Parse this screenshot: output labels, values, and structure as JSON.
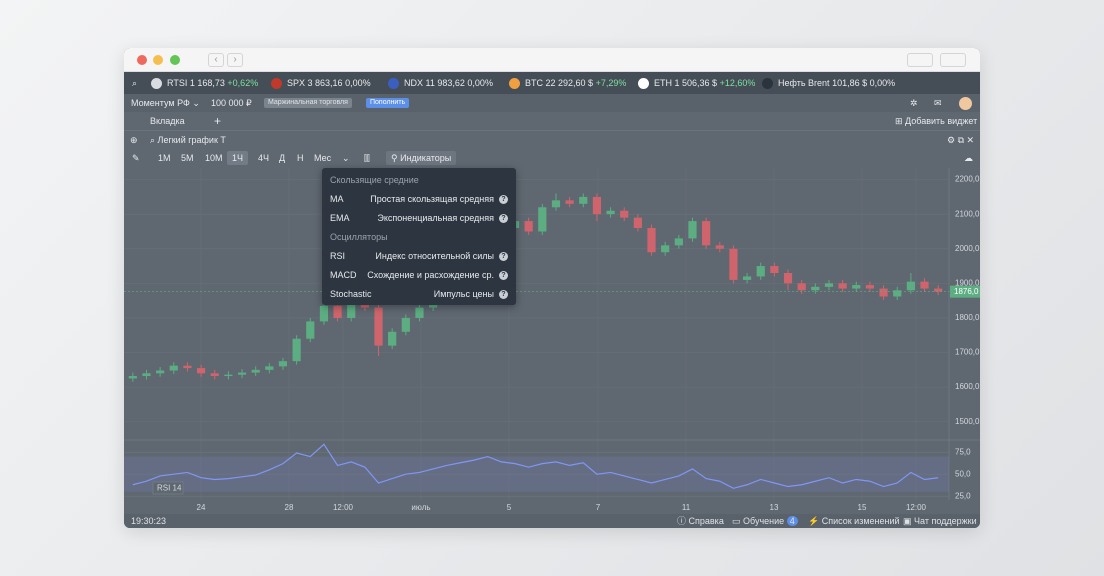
{
  "tickers": [
    {
      "name": "RTSI",
      "price": "1 168,73",
      "change": "+0,62%"
    },
    {
      "name": "SPX",
      "price": "3 863,16",
      "change": "0,00%"
    },
    {
      "name": "NDX",
      "price": "11 983,62",
      "change": "0,00%"
    },
    {
      "name": "BTC",
      "price": "22 292,60 $",
      "change": "+7,29%"
    },
    {
      "name": "ETH",
      "price": "1 506,36 $",
      "change": "+12,60%"
    },
    {
      "name": "Нефть Brent",
      "price": "101,86 $",
      "change": "0,00%"
    }
  ],
  "account": {
    "name": "Моментум РФ",
    "balance": "100 000 ₽",
    "badge": "Маржинальная торговля",
    "button": "Пополнить"
  },
  "tabs": {
    "tab": "Вкладка",
    "add_widget": "Добавить виджет"
  },
  "widget": {
    "title": "Легкий график Т"
  },
  "toolbar": {
    "intervals": [
      "1М",
      "5М",
      "10М",
      "1Ч",
      "4Ч",
      "Д",
      "Н",
      "Мес"
    ],
    "selected": 3,
    "indicators": "Индикаторы"
  },
  "dropdown": {
    "sections": [
      {
        "title": "Скользящие средние",
        "items": [
          {
            "code": "MA",
            "name": "Простая скользящая средняя"
          },
          {
            "code": "EMA",
            "name": "Экспоненциальная средняя"
          }
        ]
      },
      {
        "title": "Осцилляторы",
        "items": [
          {
            "code": "RSI",
            "name": "Индекс относительной силы"
          },
          {
            "code": "MACD",
            "name": "Схождение и расхождение ср."
          },
          {
            "code": "Stochastic",
            "name": "Импульс цены"
          }
        ]
      }
    ]
  },
  "status_bar": {
    "time": "19:30:23",
    "help": "Справка",
    "learning": "Обучение",
    "learning_count": "4",
    "changelog": "Список изменений",
    "support": "Чат поддержки"
  },
  "chart_data": [
    {
      "type": "candlestick",
      "up_color": "#5cae82",
      "down_color": "#d0646c",
      "grid": true,
      "open": [
        1625,
        1632,
        1640,
        1648,
        1662,
        1655,
        1640,
        1632,
        1636,
        1642,
        1650,
        1660,
        1675,
        1740,
        1790,
        1835,
        1800,
        1845,
        1830,
        1720,
        1760,
        1800,
        1830,
        1880,
        1930,
        1980,
        2010,
        2040,
        2060,
        2080,
        2050,
        2120,
        2140,
        2130,
        2150,
        2100,
        2110,
        2090,
        2060,
        1990,
        2010,
        2030,
        2080,
        2010,
        2000,
        1910,
        1920,
        1950,
        1930,
        1900,
        1880,
        1890,
        1900,
        1885,
        1895,
        1885,
        1862,
        1880,
        1905,
        1885
      ],
      "close": [
        1632,
        1640,
        1648,
        1662,
        1655,
        1640,
        1632,
        1636,
        1642,
        1650,
        1660,
        1675,
        1740,
        1790,
        1835,
        1800,
        1845,
        1830,
        1720,
        1760,
        1800,
        1830,
        1880,
        1930,
        1980,
        2010,
        2040,
        2060,
        2080,
        2050,
        2120,
        2140,
        2130,
        2150,
        2100,
        2110,
        2090,
        2060,
        1990,
        2010,
        2030,
        2080,
        2010,
        2000,
        1910,
        1920,
        1950,
        1930,
        1900,
        1880,
        1890,
        1900,
        1885,
        1895,
        1885,
        1862,
        1880,
        1905,
        1885,
        1876
      ],
      "high": [
        1642,
        1650,
        1658,
        1672,
        1672,
        1665,
        1650,
        1646,
        1652,
        1660,
        1670,
        1685,
        1750,
        1800,
        1845,
        1845,
        1855,
        1855,
        1840,
        1770,
        1810,
        1840,
        1890,
        1940,
        1990,
        2020,
        2050,
        2070,
        2090,
        2090,
        2130,
        2160,
        2150,
        2160,
        2160,
        2120,
        2120,
        2100,
        2070,
        2020,
        2040,
        2090,
        2090,
        2020,
        2010,
        1930,
        1960,
        1960,
        1940,
        1910,
        1900,
        1910,
        1910,
        1905,
        1905,
        1895,
        1890,
        1930,
        1915,
        1895
      ],
      "low": [
        1615,
        1622,
        1630,
        1638,
        1645,
        1630,
        1622,
        1622,
        1626,
        1632,
        1640,
        1650,
        1665,
        1730,
        1780,
        1790,
        1790,
        1820,
        1690,
        1710,
        1750,
        1790,
        1820,
        1870,
        1920,
        1970,
        2000,
        2030,
        2050,
        2040,
        2040,
        2110,
        2120,
        2120,
        2080,
        2090,
        2080,
        2050,
        1980,
        1980,
        2000,
        2020,
        2000,
        1990,
        1900,
        1900,
        1910,
        1920,
        1880,
        1870,
        1870,
        1880,
        1875,
        1875,
        1875,
        1852,
        1852,
        1870,
        1875,
        1866
      ],
      "ylim": [
        1450,
        2222
      ],
      "yticks": [
        {
          "value": 2200,
          "label": "2200,0"
        },
        {
          "value": 2100,
          "label": "2100,0"
        },
        {
          "value": 2000,
          "label": "2000,0"
        },
        {
          "value": 1900,
          "label": "1900,0"
        },
        {
          "value": 1800,
          "label": "1800,0"
        },
        {
          "value": 1700,
          "label": "1700,0"
        },
        {
          "value": 1600,
          "label": "1600,0"
        },
        {
          "value": 1500,
          "label": "1500,0"
        }
      ],
      "last_price": {
        "value": 1876,
        "label": "1876,0"
      },
      "xtick_labels": [
        "24",
        "28",
        "12:00",
        "июль",
        "5",
        "7",
        "11",
        "13",
        "15",
        "12:00"
      ]
    },
    {
      "type": "line",
      "name": "RSI 14",
      "color": "#8196f5",
      "band": [
        30,
        70
      ],
      "values": [
        38,
        42,
        48,
        50,
        52,
        46,
        44,
        45,
        47,
        49,
        55,
        62,
        74,
        70,
        84,
        60,
        64,
        58,
        40,
        45,
        50,
        52,
        56,
        60,
        63,
        66,
        70,
        64,
        62,
        58,
        62,
        64,
        60,
        63,
        50,
        52,
        48,
        44,
        40,
        44,
        48,
        56,
        45,
        42,
        34,
        38,
        44,
        40,
        36,
        38,
        42,
        46,
        40,
        44,
        42,
        36,
        40,
        52,
        44,
        46
      ],
      "ylim": [
        20,
        90
      ],
      "yticks": [
        {
          "value": 75,
          "label": "75,0"
        },
        {
          "value": 50,
          "label": "50,0"
        },
        {
          "value": 25,
          "label": "25,0"
        }
      ]
    }
  ]
}
